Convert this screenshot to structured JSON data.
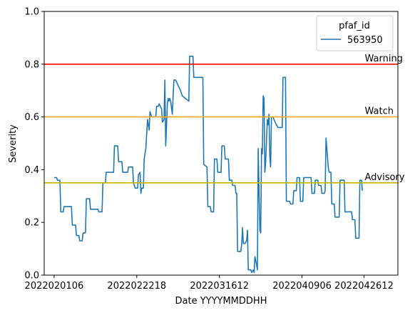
{
  "chart_data": {
    "type": "line",
    "xlabel": "Date YYYYMMDDHH",
    "ylabel": "Severity",
    "ylim": [
      0.0,
      1.0
    ],
    "yticks": [
      0.0,
      0.2,
      0.4,
      0.6,
      0.8,
      1.0
    ],
    "ytick_labels": [
      "0.0",
      "0.2",
      "0.4",
      "0.6",
      "0.8",
      "1.0"
    ],
    "xlim": [
      -1.2,
      41.6
    ],
    "xticks": [
      0,
      10,
      20,
      30,
      37.5
    ],
    "xtick_labels": [
      "2022020106",
      "2022022218",
      "2022031612",
      "2022040906",
      "2022042612"
    ],
    "grid": false,
    "legend": {
      "title": "pfaf_id",
      "location": "upper right"
    },
    "thresholds": [
      {
        "label": "Warning",
        "value": 0.8,
        "color": "#ff0000"
      },
      {
        "label": "Watch",
        "value": 0.6,
        "color": "#ffa500"
      },
      {
        "label": "Advisory",
        "value": 0.35,
        "color": "#c8b400"
      }
    ],
    "series": [
      {
        "name": "563950",
        "color": "#1f77b4",
        "points": [
          [
            0.0,
            0.37
          ],
          [
            0.3,
            0.37
          ],
          [
            0.4,
            0.36
          ],
          [
            0.7,
            0.36
          ],
          [
            0.8,
            0.24
          ],
          [
            1.1,
            0.24
          ],
          [
            1.2,
            0.26
          ],
          [
            2.1,
            0.26
          ],
          [
            2.2,
            0.19
          ],
          [
            2.6,
            0.19
          ],
          [
            2.7,
            0.15
          ],
          [
            3.0,
            0.15
          ],
          [
            3.1,
            0.13
          ],
          [
            3.4,
            0.13
          ],
          [
            3.5,
            0.16
          ],
          [
            3.8,
            0.16
          ],
          [
            3.9,
            0.29
          ],
          [
            4.3,
            0.29
          ],
          [
            4.4,
            0.25
          ],
          [
            5.3,
            0.25
          ],
          [
            5.4,
            0.24
          ],
          [
            5.8,
            0.24
          ],
          [
            5.9,
            0.35
          ],
          [
            6.2,
            0.35
          ],
          [
            6.3,
            0.39
          ],
          [
            7.2,
            0.39
          ],
          [
            7.3,
            0.49
          ],
          [
            7.7,
            0.49
          ],
          [
            7.8,
            0.43
          ],
          [
            8.2,
            0.43
          ],
          [
            8.3,
            0.39
          ],
          [
            8.9,
            0.39
          ],
          [
            9.0,
            0.41
          ],
          [
            9.5,
            0.41
          ],
          [
            9.6,
            0.35
          ],
          [
            9.8,
            0.33
          ],
          [
            10.1,
            0.33
          ],
          [
            10.2,
            0.38
          ],
          [
            10.4,
            0.39
          ],
          [
            10.5,
            0.31
          ],
          [
            10.6,
            0.33
          ],
          [
            10.8,
            0.33
          ],
          [
            10.9,
            0.44
          ],
          [
            11.1,
            0.48
          ],
          [
            11.3,
            0.59
          ],
          [
            11.5,
            0.55
          ],
          [
            11.6,
            0.62
          ],
          [
            11.8,
            0.6
          ],
          [
            12.1,
            0.6
          ],
          [
            12.3,
            0.6
          ],
          [
            12.4,
            0.64
          ],
          [
            12.6,
            0.64
          ],
          [
            12.7,
            0.65
          ],
          [
            13.0,
            0.63
          ],
          [
            13.1,
            0.58
          ],
          [
            13.3,
            0.59
          ],
          [
            13.4,
            0.74
          ],
          [
            13.5,
            0.49
          ],
          [
            13.7,
            0.65
          ],
          [
            13.8,
            0.67
          ],
          [
            13.9,
            0.66
          ],
          [
            14.0,
            0.67
          ],
          [
            14.1,
            0.66
          ],
          [
            14.3,
            0.61
          ],
          [
            14.5,
            0.74
          ],
          [
            14.7,
            0.74
          ],
          [
            15.0,
            0.72
          ],
          [
            15.3,
            0.7
          ],
          [
            15.5,
            0.68
          ],
          [
            16.3,
            0.66
          ],
          [
            16.4,
            0.83
          ],
          [
            16.8,
            0.83
          ],
          [
            16.9,
            0.75
          ],
          [
            17.6,
            0.75
          ],
          [
            17.7,
            0.75
          ],
          [
            18.0,
            0.75
          ],
          [
            18.1,
            0.42
          ],
          [
            18.5,
            0.41
          ],
          [
            18.6,
            0.26
          ],
          [
            18.9,
            0.26
          ],
          [
            19.0,
            0.24
          ],
          [
            19.3,
            0.24
          ],
          [
            19.4,
            0.44
          ],
          [
            19.7,
            0.44
          ],
          [
            19.8,
            0.39
          ],
          [
            20.2,
            0.39
          ],
          [
            20.3,
            0.49
          ],
          [
            20.6,
            0.49
          ],
          [
            20.7,
            0.44
          ],
          [
            21.1,
            0.44
          ],
          [
            21.2,
            0.36
          ],
          [
            21.5,
            0.36
          ],
          [
            21.6,
            0.34
          ],
          [
            21.9,
            0.34
          ],
          [
            22.0,
            0.31
          ],
          [
            22.1,
            0.31
          ],
          [
            22.2,
            0.09
          ],
          [
            22.6,
            0.09
          ],
          [
            22.7,
            0.12
          ],
          [
            22.8,
            0.18
          ],
          [
            22.9,
            0.12
          ],
          [
            23.1,
            0.12
          ],
          [
            23.3,
            0.13
          ],
          [
            23.4,
            0.17
          ],
          [
            23.5,
            0.02
          ],
          [
            23.8,
            0.02
          ],
          [
            23.9,
            0.01
          ],
          [
            24.1,
            0.02
          ],
          [
            24.2,
            0.01
          ],
          [
            24.3,
            0.07
          ],
          [
            24.5,
            0.04
          ],
          [
            24.6,
            0.02
          ],
          [
            24.7,
            0.48
          ],
          [
            24.8,
            0.31
          ],
          [
            24.9,
            0.17
          ],
          [
            25.0,
            0.16
          ],
          [
            25.1,
            0.48
          ],
          [
            25.2,
            0.46
          ],
          [
            25.3,
            0.68
          ],
          [
            25.4,
            0.67
          ],
          [
            25.5,
            0.39
          ],
          [
            25.6,
            0.43
          ],
          [
            25.8,
            0.59
          ],
          [
            25.9,
            0.57
          ],
          [
            26.0,
            0.61
          ],
          [
            26.1,
            0.45
          ],
          [
            26.2,
            0.41
          ],
          [
            26.3,
            0.6
          ],
          [
            26.5,
            0.6
          ],
          [
            26.6,
            0.59
          ],
          [
            26.9,
            0.57
          ],
          [
            27.1,
            0.56
          ],
          [
            27.6,
            0.56
          ],
          [
            27.7,
            0.75
          ],
          [
            28.0,
            0.75
          ],
          [
            28.1,
            0.28
          ],
          [
            28.5,
            0.28
          ],
          [
            28.6,
            0.27
          ],
          [
            28.9,
            0.27
          ],
          [
            29.0,
            0.32
          ],
          [
            29.3,
            0.32
          ],
          [
            29.4,
            0.37
          ],
          [
            29.7,
            0.37
          ],
          [
            29.8,
            0.28
          ],
          [
            30.1,
            0.28
          ],
          [
            30.2,
            0.37
          ],
          [
            30.5,
            0.37
          ],
          [
            30.6,
            0.37
          ],
          [
            31.1,
            0.37
          ],
          [
            31.2,
            0.31
          ],
          [
            31.5,
            0.31
          ],
          [
            31.6,
            0.36
          ],
          [
            31.9,
            0.36
          ],
          [
            32.0,
            0.34
          ],
          [
            32.3,
            0.34
          ],
          [
            32.4,
            0.31
          ],
          [
            32.7,
            0.31
          ],
          [
            32.8,
            0.32
          ],
          [
            32.9,
            0.52
          ],
          [
            33.1,
            0.44
          ],
          [
            33.2,
            0.4
          ],
          [
            33.3,
            0.39
          ],
          [
            33.5,
            0.39
          ],
          [
            33.6,
            0.27
          ],
          [
            33.9,
            0.27
          ],
          [
            34.0,
            0.22
          ],
          [
            34.4,
            0.22
          ],
          [
            34.5,
            0.22
          ],
          [
            34.6,
            0.36
          ],
          [
            35.1,
            0.36
          ],
          [
            35.2,
            0.24
          ],
          [
            35.4,
            0.24
          ],
          [
            36.0,
            0.24
          ],
          [
            36.1,
            0.21
          ],
          [
            36.4,
            0.21
          ],
          [
            36.5,
            0.14
          ],
          [
            36.9,
            0.14
          ],
          [
            37.0,
            0.36
          ],
          [
            37.2,
            0.36
          ],
          [
            37.3,
            0.32
          ]
        ]
      }
    ]
  }
}
